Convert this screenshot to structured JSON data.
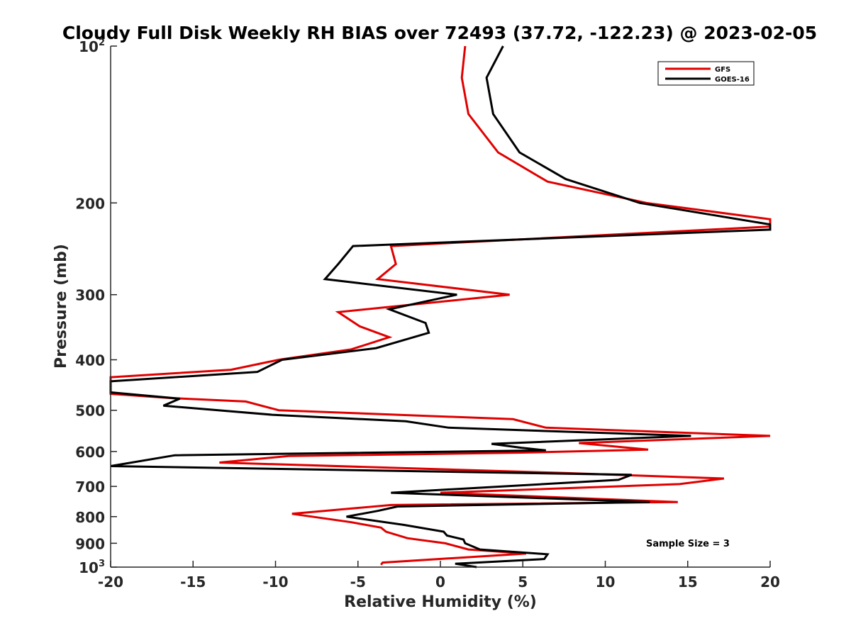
{
  "chart_data": {
    "type": "line",
    "title": "Cloudy Full Disk Weekly RH BIAS over 72493 (37.72, -122.23) @ 2023-02-05",
    "xlabel": "Relative Humidity (%)",
    "ylabel": "Pressure (mb)",
    "xlim": [
      -20,
      20
    ],
    "ylim": [
      100,
      1000
    ],
    "yscale": "log",
    "y_reversed": true,
    "grid": false,
    "legend_position": "top-right",
    "x_ticks": [
      -20,
      -15,
      -10,
      -5,
      0,
      5,
      10,
      15,
      20
    ],
    "x_tick_labels": [
      "-20",
      "-15",
      "-10",
      "-5",
      "0",
      "5",
      "10",
      "15",
      "20"
    ],
    "y_ticks": [
      {
        "value": 100,
        "base": "10",
        "exp": "2"
      },
      {
        "value": 200,
        "label": "200"
      },
      {
        "value": 300,
        "label": "300"
      },
      {
        "value": 400,
        "label": "400"
      },
      {
        "value": 500,
        "label": "500"
      },
      {
        "value": 600,
        "label": "600"
      },
      {
        "value": 700,
        "label": "700"
      },
      {
        "value": 800,
        "label": "800"
      },
      {
        "value": 900,
        "label": "900"
      },
      {
        "value": 1000,
        "base": "10",
        "exp": "3"
      }
    ],
    "annotation": "Sample Size = 3",
    "series": [
      {
        "name": "GFS",
        "color": "#e00000",
        "points": [
          [
            1.5,
            100
          ],
          [
            1.3,
            115
          ],
          [
            1.7,
            135
          ],
          [
            3.5,
            160
          ],
          [
            6.5,
            182
          ],
          [
            12.5,
            200
          ],
          [
            20,
            215
          ],
          [
            20,
            222
          ],
          [
            -3,
            242
          ],
          [
            -2.7,
            262
          ],
          [
            -3.8,
            280
          ],
          [
            4.2,
            300
          ],
          [
            -6.2,
            324
          ],
          [
            -4.9,
            345
          ],
          [
            -3.1,
            362
          ],
          [
            -5.4,
            382
          ],
          [
            -9.8,
            400
          ],
          [
            -12.7,
            418
          ],
          [
            -20,
            432
          ],
          [
            -20,
            465
          ],
          [
            -16.2,
            474
          ],
          [
            -11.8,
            481
          ],
          [
            -9.8,
            500
          ],
          [
            4.4,
            520
          ],
          [
            6.4,
            540
          ],
          [
            20,
            560
          ],
          [
            8.4,
            578
          ],
          [
            12.6,
            595
          ],
          [
            4.9,
            603
          ],
          [
            -9.2,
            612
          ],
          [
            -13.4,
            630
          ],
          [
            7.7,
            660
          ],
          [
            17.2,
            676
          ],
          [
            14.5,
            693
          ],
          [
            0,
            720
          ],
          [
            14.4,
            750
          ],
          [
            -3,
            760
          ],
          [
            -9,
            790
          ],
          [
            -5.4,
            820
          ],
          [
            -3.6,
            840
          ],
          [
            -3.3,
            855
          ],
          [
            -2,
            880
          ],
          [
            0.3,
            900
          ],
          [
            1.7,
            925
          ],
          [
            5.2,
            942
          ],
          [
            -3.5,
            980
          ],
          [
            -3.6,
            990
          ]
        ]
      },
      {
        "name": "GOES-16",
        "color": "#000000",
        "points": [
          [
            3.8,
            100
          ],
          [
            2.8,
            115
          ],
          [
            3.2,
            135
          ],
          [
            4.8,
            160
          ],
          [
            7.6,
            180
          ],
          [
            12.1,
            200
          ],
          [
            20,
            220
          ],
          [
            20,
            225
          ],
          [
            -5.3,
            242
          ],
          [
            -6.2,
            262
          ],
          [
            -7,
            280
          ],
          [
            1,
            300
          ],
          [
            -3.1,
            320
          ],
          [
            -0.9,
            340
          ],
          [
            -0.7,
            355
          ],
          [
            -3.9,
            380
          ],
          [
            -9.6,
            400
          ],
          [
            -11.1,
            422
          ],
          [
            -20,
            440
          ],
          [
            -20,
            462
          ],
          [
            -15.8,
            475
          ],
          [
            -16.8,
            490
          ],
          [
            -10.2,
            510
          ],
          [
            -2.1,
            525
          ],
          [
            0.5,
            540
          ],
          [
            15.2,
            560
          ],
          [
            3.1,
            580
          ],
          [
            4.9,
            590
          ],
          [
            6.4,
            597
          ],
          [
            -16.1,
            610
          ],
          [
            -20,
            640
          ],
          [
            11.6,
            665
          ],
          [
            10.8,
            680
          ],
          [
            -3,
            720
          ],
          [
            12.7,
            750
          ],
          [
            -2.6,
            765
          ],
          [
            -3.8,
            780
          ],
          [
            -5.7,
            800
          ],
          [
            -2.2,
            830
          ],
          [
            0.2,
            855
          ],
          [
            0.4,
            870
          ],
          [
            1.4,
            885
          ],
          [
            1.5,
            900
          ],
          [
            2.4,
            925
          ],
          [
            6.5,
            945
          ],
          [
            6.3,
            965
          ],
          [
            0.9,
            985
          ],
          [
            2.2,
            1000
          ]
        ]
      }
    ]
  }
}
